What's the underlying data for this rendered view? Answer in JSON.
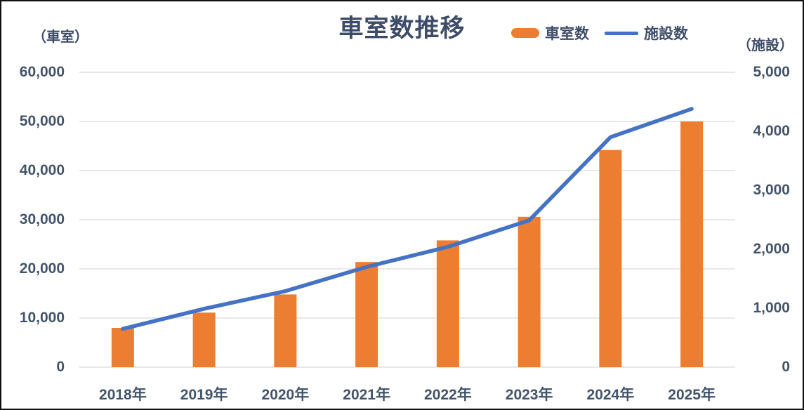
{
  "title": "車室数推移",
  "legend": {
    "bar_label": "車室数",
    "line_label": "施設数"
  },
  "axis_units": {
    "left": "（車室）",
    "right": "（施設）"
  },
  "colors": {
    "bar": "#ED7D31",
    "line": "#4472C4",
    "grid": "#D9D9D9",
    "text": "#44546A"
  },
  "chart_data": {
    "type": "combo",
    "categories": [
      "2018年",
      "2019年",
      "2020年",
      "2021年",
      "2022年",
      "2023年",
      "2024年",
      "2025年"
    ],
    "series": [
      {
        "name": "車室数",
        "type": "bar",
        "axis": "left",
        "color": "#ED7D31",
        "values": [
          8000,
          11100,
          14800,
          21400,
          25800,
          30600,
          44200,
          50000
        ]
      },
      {
        "name": "施設数",
        "type": "line",
        "axis": "right",
        "color": "#4472C4",
        "values": [
          650,
          990,
          1290,
          1700,
          2040,
          2490,
          3900,
          4380
        ]
      }
    ],
    "title": "車室数推移",
    "left_axis": {
      "unit_label": "（車室）",
      "range": [
        0,
        60000
      ],
      "step": 10000,
      "tick_labels": [
        "0",
        "10,000",
        "20,000",
        "30,000",
        "40,000",
        "50,000",
        "60,000"
      ]
    },
    "right_axis": {
      "unit_label": "（施設）",
      "range": [
        0,
        5000
      ],
      "step": 1000,
      "tick_labels": [
        "0",
        "1,000",
        "2,000",
        "3,000",
        "4,000",
        "5,000"
      ]
    },
    "grid": true,
    "legend_position": "top-right"
  }
}
